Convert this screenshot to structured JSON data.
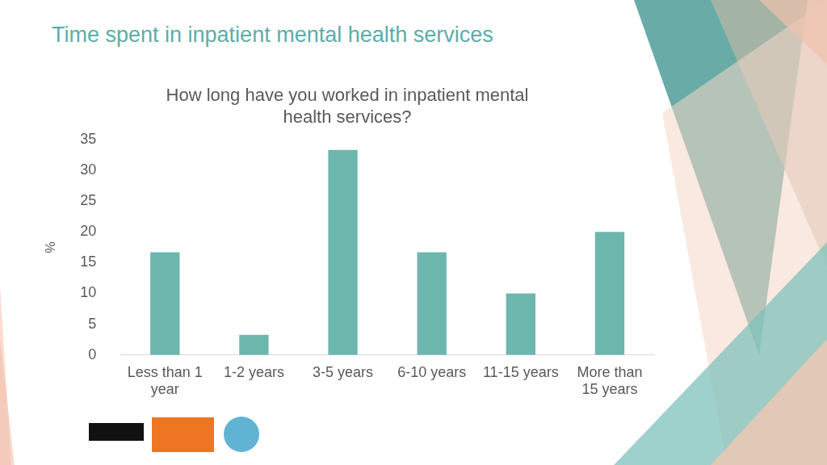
{
  "header": {
    "title": "Time spent in inpatient mental health services"
  },
  "chart_data": {
    "type": "bar",
    "title": "How long have you worked in inpatient mental health services?",
    "y_label": "%",
    "categories": [
      "Less than 1 year",
      "1-2 years",
      "3-5 years",
      "6-10 years",
      "11-15 years",
      "More than 15 years"
    ],
    "values": [
      16.7,
      3.3,
      33.3,
      16.7,
      10,
      20
    ],
    "color": "#6db6ae",
    "ylim": [
      0,
      35
    ],
    "yticks": [
      0,
      5,
      10,
      15,
      20,
      25,
      30,
      35
    ],
    "grid": false
  }
}
